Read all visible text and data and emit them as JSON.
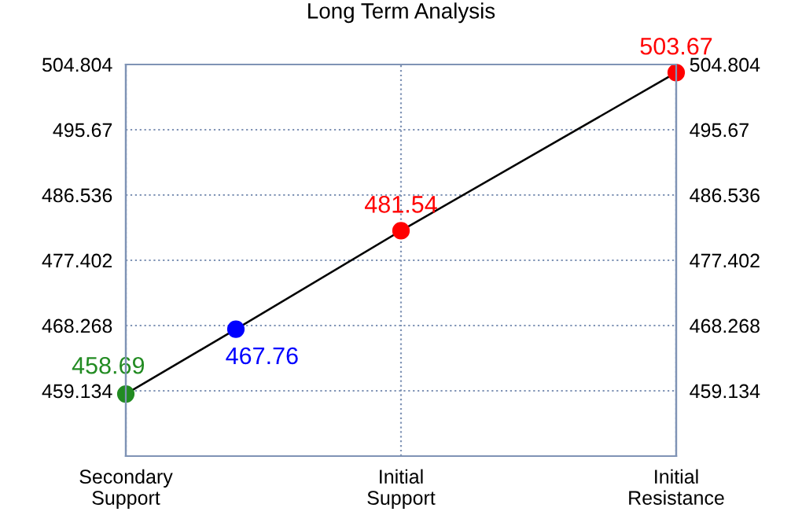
{
  "chart_data": {
    "type": "line",
    "title": "Long Term Analysis",
    "categories": [
      "Secondary\nSupport",
      null,
      null,
      null,
      null,
      "Initial\nSupport",
      null,
      null,
      null,
      null,
      "Initial\nResistance"
    ],
    "series": [
      {
        "color": "#000000",
        "colors": [
          "#228b22",
          null,
          "#0000ff",
          null,
          null,
          "#ff0000",
          null,
          null,
          null,
          null,
          "#ff0000"
        ],
        "values": [
          458.69,
          null,
          467.76,
          null,
          null,
          481.54,
          null,
          null,
          null,
          null,
          503.67
        ]
      }
    ],
    "data_labels": true,
    "marker": "circle",
    "ylim": [
      450.0,
      504.804
    ],
    "yticks": [
      459.134,
      468.268,
      477.402,
      486.536,
      495.67,
      504.804
    ],
    "y2lim": [
      450.0,
      504.804
    ],
    "y2ticks": [
      459.134,
      468.268,
      477.402,
      486.536,
      495.67,
      504.804
    ],
    "grid": true
  }
}
